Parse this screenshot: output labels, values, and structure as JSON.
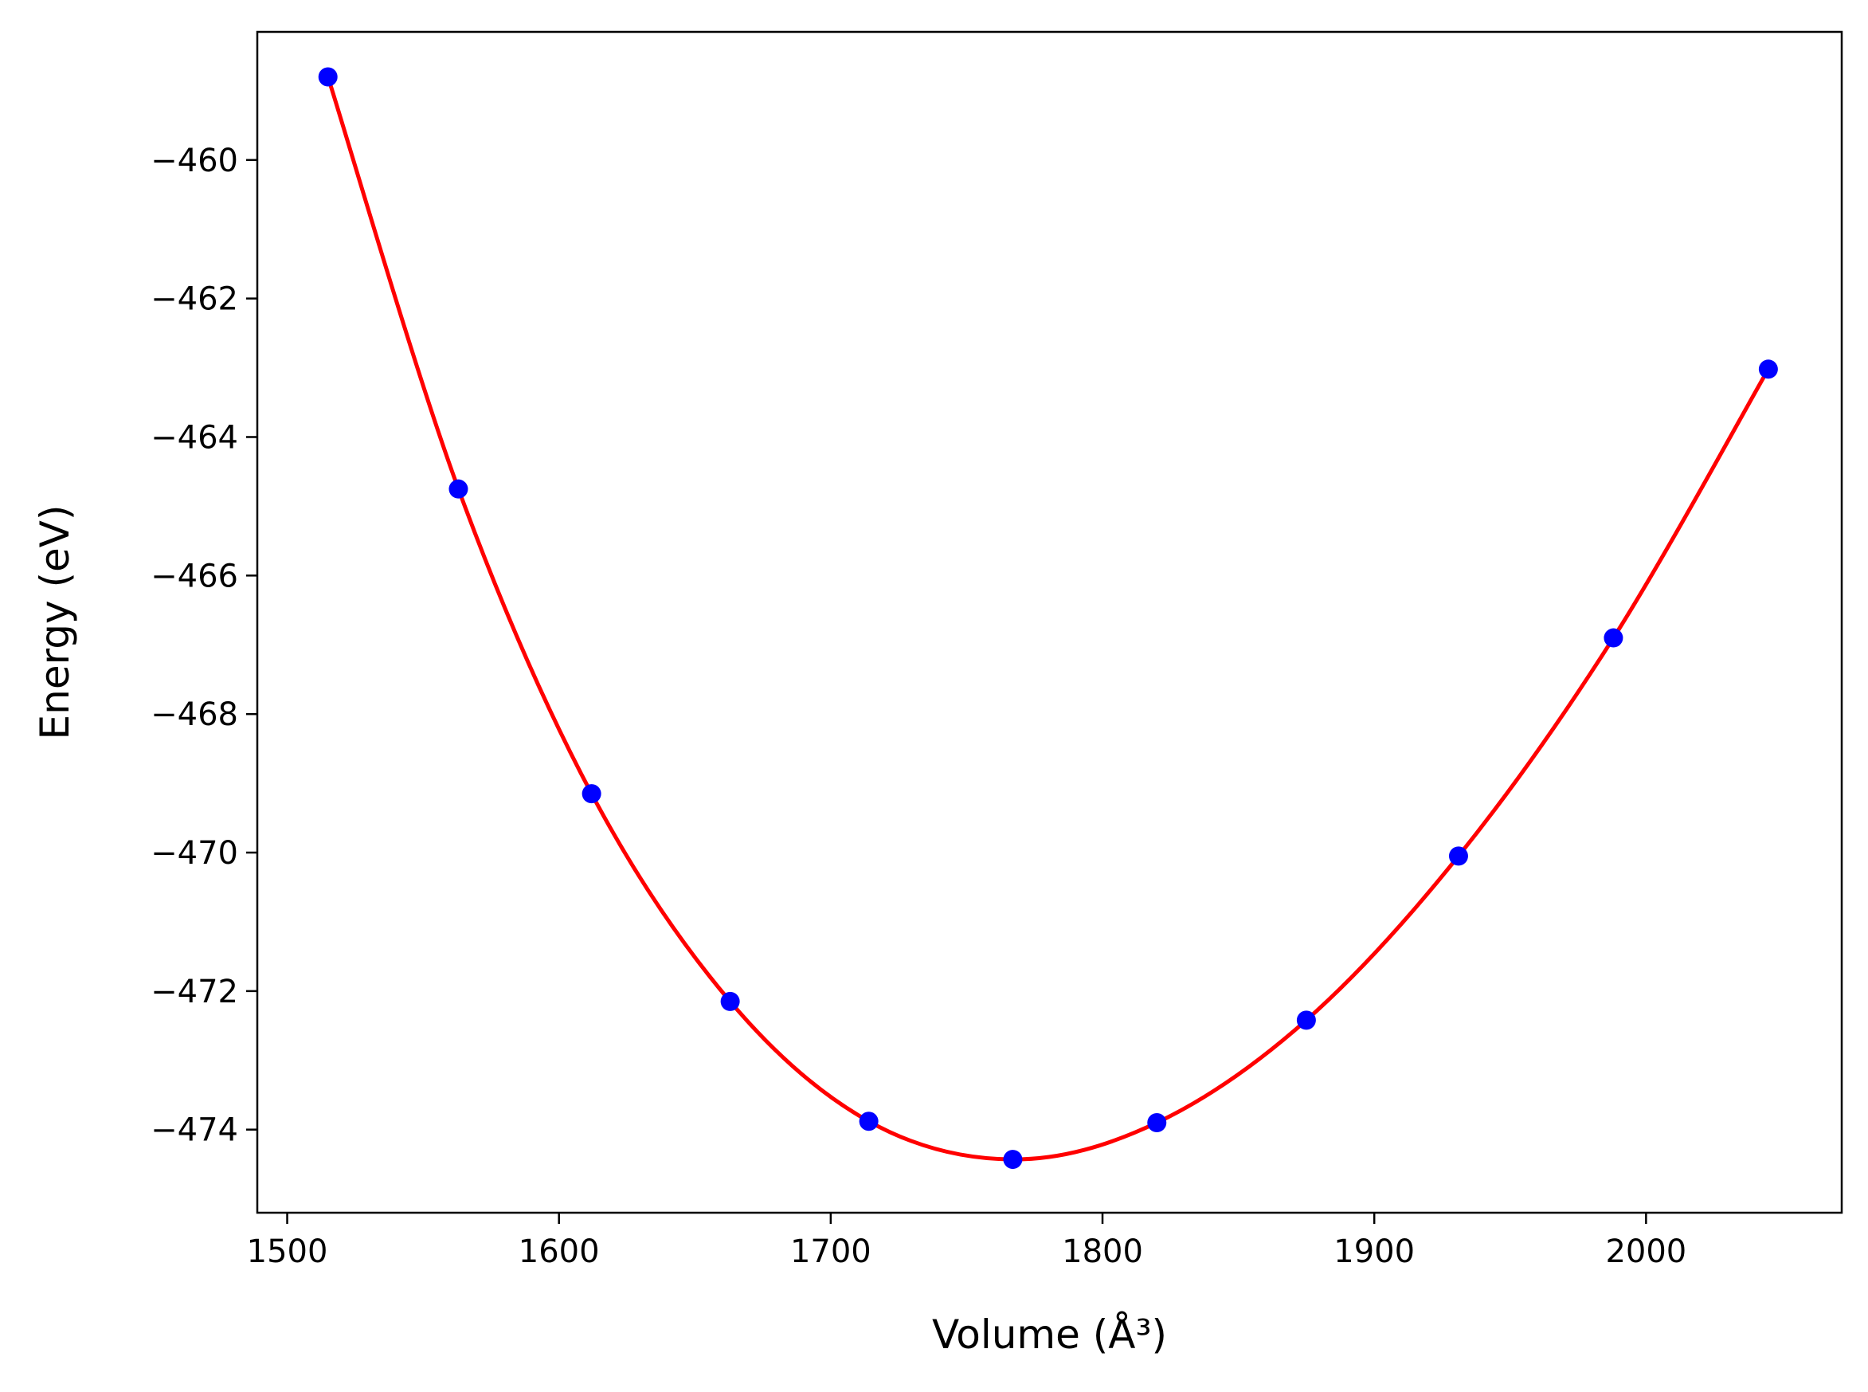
{
  "chart_data": {
    "type": "scatter",
    "xlabel": "Volume (Å³)",
    "ylabel": "Energy (eV)",
    "xlim": [
      1489,
      2072
    ],
    "ylim": [
      -475.2,
      -458.15
    ],
    "x_ticks": [
      1500,
      1600,
      1700,
      1800,
      1900,
      2000
    ],
    "y_ticks": [
      -460,
      -462,
      -464,
      -466,
      -468,
      -470,
      -472,
      -474
    ],
    "x_tick_labels": [
      "1500",
      "1600",
      "1700",
      "1800",
      "1900",
      "2000"
    ],
    "y_tick_labels": [
      "−460",
      "−462",
      "−464",
      "−466",
      "−468",
      "−470",
      "−472",
      "−474"
    ],
    "grid": false,
    "series": [
      {
        "kind": "points",
        "color": "#0000ff",
        "x": [
          1515,
          1563,
          1612,
          1663,
          1714,
          1767,
          1820,
          1875,
          1931,
          1988,
          2045
        ],
        "y": [
          -458.8,
          -464.75,
          -469.15,
          -472.15,
          -473.88,
          -474.43,
          -473.9,
          -472.42,
          -470.05,
          -466.9,
          -463.02
        ]
      },
      {
        "kind": "fit-curve",
        "color": "#ff0000",
        "x": [
          1515,
          1563,
          1612,
          1663,
          1714,
          1767,
          1820,
          1875,
          1931,
          1988,
          2045
        ],
        "y": [
          -458.8,
          -464.75,
          -469.15,
          -472.15,
          -473.88,
          -474.43,
          -473.9,
          -472.42,
          -470.05,
          -466.9,
          -463.02
        ]
      }
    ]
  }
}
